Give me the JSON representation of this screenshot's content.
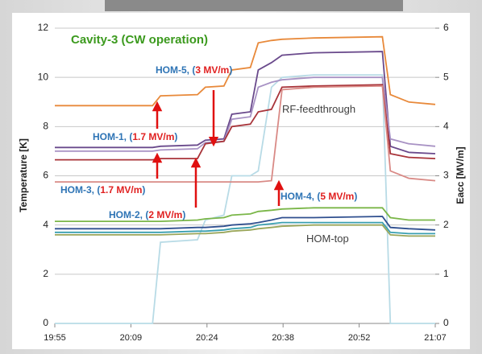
{
  "chart_data": {
    "type": "line",
    "title": "Cavity-3 (CW operation)",
    "title_color": "#3c9a1e",
    "y_label": "Temperature [K]",
    "y2_label": "Eacc [MV/m]",
    "x": [
      1195,
      1213.5,
      1215,
      1222,
      1223.5,
      1227,
      1228.5,
      1232,
      1233.5,
      1236,
      1238,
      1244,
      1257,
      1258.5,
      1262,
      1267
    ],
    "xlim": [
      1195,
      1267
    ],
    "xticks": [
      {
        "value": 1195,
        "label": "19:55"
      },
      {
        "value": 1209.4,
        "label": "20:09"
      },
      {
        "value": 1223.8,
        "label": "20:24"
      },
      {
        "value": 1238.2,
        "label": "20:38"
      },
      {
        "value": 1252.6,
        "label": "20:52"
      },
      {
        "value": 1267,
        "label": "21:07"
      }
    ],
    "ylim": [
      0,
      12
    ],
    "yticks": [
      0,
      2,
      4,
      6,
      8,
      10,
      12
    ],
    "y2lim": [
      0,
      6
    ],
    "y2ticks": [
      0,
      1,
      2,
      3,
      4,
      5,
      6
    ],
    "grid": true,
    "series": [
      {
        "color": "#e8893a",
        "values": [
          8.85,
          8.85,
          9.25,
          9.3,
          9.6,
          9.65,
          10.3,
          10.4,
          11.4,
          11.5,
          11.55,
          11.6,
          11.65,
          9.3,
          9.0,
          8.9
        ]
      },
      {
        "color": "#6a4a8c",
        "values": [
          7.15,
          7.15,
          7.2,
          7.25,
          7.45,
          7.5,
          8.5,
          8.6,
          10.3,
          10.6,
          10.9,
          11.0,
          11.05,
          7.2,
          6.95,
          6.9
        ]
      },
      {
        "color": "#a892c4",
        "values": [
          7.0,
          7.0,
          7.05,
          7.1,
          7.35,
          7.4,
          8.3,
          8.4,
          9.6,
          9.8,
          9.9,
          10.0,
          10.0,
          7.5,
          7.3,
          7.2
        ]
      },
      {
        "color": "#a8343a",
        "values": [
          6.65,
          6.65,
          6.7,
          6.7,
          7.3,
          7.4,
          8.0,
          8.1,
          8.6,
          8.7,
          9.6,
          9.65,
          9.7,
          6.9,
          6.75,
          6.7
        ]
      },
      {
        "color": "#d98a86",
        "values": [
          5.75,
          5.75,
          5.75,
          5.75,
          5.75,
          5.75,
          5.75,
          5.75,
          5.75,
          5.8,
          9.5,
          9.6,
          9.65,
          6.2,
          5.9,
          5.8
        ]
      },
      {
        "color": "#7ab648",
        "values": [
          4.15,
          4.15,
          4.15,
          4.2,
          4.25,
          4.3,
          4.4,
          4.45,
          4.55,
          4.6,
          4.65,
          4.7,
          4.7,
          4.3,
          4.2,
          4.2
        ]
      },
      {
        "color": "#2f4f8f",
        "values": [
          3.85,
          3.85,
          3.85,
          3.9,
          3.9,
          3.95,
          4.0,
          4.05,
          4.1,
          4.2,
          4.3,
          4.3,
          4.35,
          3.9,
          3.85,
          3.8
        ]
      },
      {
        "color": "#3a9fb0",
        "values": [
          3.7,
          3.7,
          3.7,
          3.75,
          3.75,
          3.8,
          3.85,
          3.9,
          4.0,
          4.05,
          4.1,
          4.1,
          4.1,
          3.7,
          3.65,
          3.65
        ]
      },
      {
        "color": "#9aa65a",
        "values": [
          3.6,
          3.6,
          3.6,
          3.65,
          3.65,
          3.7,
          3.75,
          3.8,
          3.85,
          3.9,
          3.95,
          4.0,
          4.0,
          3.6,
          3.55,
          3.55
        ]
      },
      {
        "color": "#b8dbe6",
        "axis": "y2",
        "values": [
          0,
          0,
          1.65,
          1.7,
          2.1,
          2.2,
          3.0,
          3.0,
          3.1,
          4.8,
          5.0,
          5.05,
          5.05,
          0,
          0,
          0
        ]
      }
    ],
    "annotations": [
      {
        "parts": [
          {
            "text": "HOM-5, (",
            "color": "#2e74b5"
          },
          {
            "text": "3 MV/m",
            "color": "#e02020"
          },
          {
            "text": ")",
            "color": "#2e74b5"
          }
        ]
      },
      {
        "parts": [
          {
            "text": "HOM-1, (",
            "color": "#2e74b5"
          },
          {
            "text": "1.7 MV/m",
            "color": "#e02020"
          },
          {
            "text": ")",
            "color": "#2e74b5"
          }
        ]
      },
      {
        "parts": [
          {
            "text": "HOM-3, (",
            "color": "#2e74b5"
          },
          {
            "text": "1.7 MV/m",
            "color": "#e02020"
          },
          {
            "text": ")",
            "color": "#2e74b5"
          }
        ]
      },
      {
        "parts": [
          {
            "text": "HOM-2, (",
            "color": "#2e74b5"
          },
          {
            "text": "2 MV/m",
            "color": "#e02020"
          },
          {
            "text": ")",
            "color": "#2e74b5"
          }
        ]
      },
      {
        "parts": [
          {
            "text": "HOM-4, (",
            "color": "#2e74b5"
          },
          {
            "text": "5 MV/m",
            "color": "#e02020"
          },
          {
            "text": ")",
            "color": "#2e74b5"
          }
        ]
      },
      {
        "parts": [
          {
            "text": "RF-feedthrough",
            "color": "#404040"
          }
        ]
      },
      {
        "parts": [
          {
            "text": "HOM-top",
            "color": "#404040"
          }
        ]
      }
    ]
  }
}
